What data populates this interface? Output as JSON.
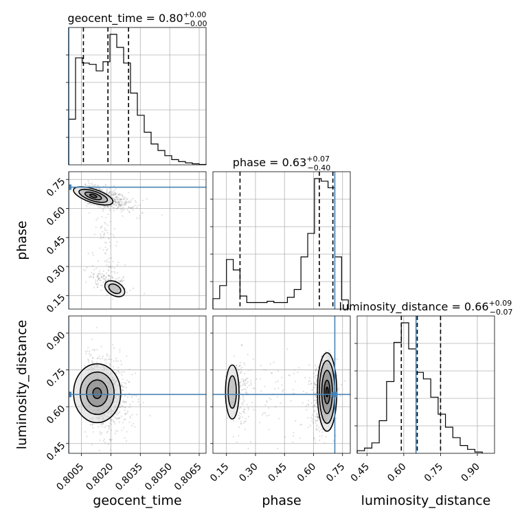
{
  "chart_data": {
    "type": "corner",
    "parameters": [
      "geocent_time",
      "phase",
      "luminosity_distance"
    ],
    "axis_labels": {
      "geocent_time": "geocent_time",
      "phase": "phase",
      "luminosity_distance": "luminosity_distance"
    },
    "ranges": {
      "geocent_time": [
        0.79985,
        0.80685
      ],
      "phase": [
        0.08,
        0.79
      ],
      "luminosity_distance": [
        0.41,
        0.97
      ]
    },
    "ticks": {
      "geocent_time": {
        "values": [
          0.8005,
          0.802,
          0.8035,
          0.805,
          0.8065
        ],
        "labels": [
          "0.8005",
          "0.8020",
          "0.8035",
          "0.8050",
          "0.8065"
        ]
      },
      "phase": {
        "values": [
          0.15,
          0.3,
          0.45,
          0.6,
          0.75
        ],
        "labels": [
          "0.15",
          "0.30",
          "0.45",
          "0.60",
          "0.75"
        ]
      },
      "luminosity_distance": {
        "values": [
          0.45,
          0.6,
          0.75,
          0.9
        ],
        "labels": [
          "0.45",
          "0.60",
          "0.75",
          "0.90"
        ]
      }
    },
    "titles": {
      "geocent_time": {
        "name": "geocent_time",
        "value": "0.80",
        "plus": "+0.00",
        "minus": "−0.00"
      },
      "phase": {
        "name": "phase",
        "value": "0.63",
        "plus": "+0.07",
        "minus": "−0.40"
      },
      "luminosity_distance": {
        "name": "luminosity_distance",
        "value": "0.66",
        "plus": "+0.09",
        "minus": "−0.07"
      }
    },
    "truths": {
      "geocent_time": 0.79985,
      "phase": 0.71,
      "luminosity_distance": 0.65
    },
    "quantiles": {
      "geocent_time": [
        0.8006,
        0.80185,
        0.8029
      ],
      "phase": [
        0.22,
        0.63,
        0.7
      ],
      "luminosity_distance": [
        0.59,
        0.655,
        0.75
      ]
    },
    "histograms": {
      "geocent_time": {
        "edges": [
          0.79985,
          0.8002,
          0.80055,
          0.8009,
          0.80125,
          0.8016,
          0.80195,
          0.8023,
          0.80265,
          0.803,
          0.80335,
          0.8037,
          0.80405,
          0.8044,
          0.80475,
          0.8051,
          0.80545,
          0.8058,
          0.80615,
          0.8065,
          0.80685
        ],
        "counts": [
          0.35,
          0.82,
          0.78,
          0.77,
          0.72,
          0.79,
          1.0,
          0.9,
          0.78,
          0.55,
          0.38,
          0.25,
          0.16,
          0.11,
          0.07,
          0.04,
          0.025,
          0.015,
          0.008,
          0.003
        ]
      },
      "phase": {
        "edges": [
          0.08,
          0.115,
          0.15,
          0.185,
          0.22,
          0.255,
          0.29,
          0.325,
          0.36,
          0.395,
          0.43,
          0.465,
          0.5,
          0.535,
          0.57,
          0.605,
          0.64,
          0.675,
          0.71,
          0.745,
          0.78
        ],
        "counts": [
          0.08,
          0.18,
          0.38,
          0.3,
          0.1,
          0.05,
          0.05,
          0.05,
          0.06,
          0.05,
          0.05,
          0.09,
          0.15,
          0.4,
          0.58,
          1.0,
          0.98,
          0.93,
          0.4,
          0.07
        ]
      },
      "luminosity_distance": {
        "edges": [
          0.41,
          0.44,
          0.47,
          0.5,
          0.53,
          0.56,
          0.59,
          0.62,
          0.65,
          0.68,
          0.71,
          0.74,
          0.77,
          0.8,
          0.83,
          0.86,
          0.89,
          0.92
        ],
        "counts": [
          0.02,
          0.04,
          0.08,
          0.25,
          0.55,
          0.85,
          1.0,
          0.8,
          0.62,
          0.57,
          0.43,
          0.3,
          0.2,
          0.12,
          0.06,
          0.03,
          0.01
        ]
      }
    },
    "colors": {
      "truth": "#4682b4",
      "line": "#000000",
      "grid": "#b0b0b0",
      "points": "#808080"
    }
  }
}
